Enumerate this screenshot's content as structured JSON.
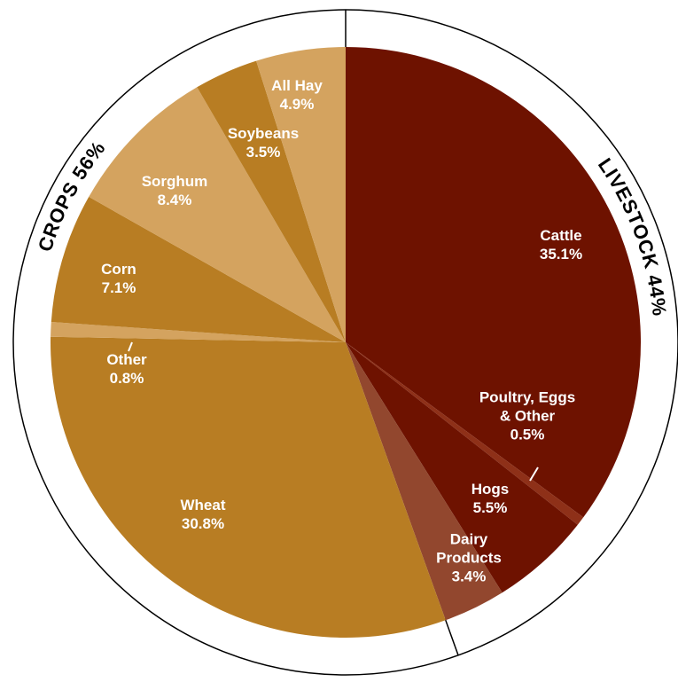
{
  "chart_data": {
    "type": "pie",
    "slices": [
      {
        "label": "Cattle",
        "value": 35.1,
        "value_label": "35.1%",
        "group": "livestock",
        "color": "#6e1200"
      },
      {
        "label": "Poultry, Eggs & Other",
        "label_lines": [
          "Poultry, Eggs",
          "& Other"
        ],
        "value": 0.5,
        "value_label": "0.5%",
        "group": "livestock",
        "color": "#8e3018"
      },
      {
        "label": "Hogs",
        "value": 5.5,
        "value_label": "5.5%",
        "group": "livestock",
        "color": "#6e1200"
      },
      {
        "label": "Dairy Products",
        "label_lines": [
          "Dairy",
          "Products"
        ],
        "value": 3.4,
        "value_label": "3.4%",
        "group": "livestock",
        "color": "#92472e"
      },
      {
        "label": "Wheat",
        "value": 30.8,
        "value_label": "30.8%",
        "group": "crops",
        "color": "#b87d23"
      },
      {
        "label": "Other",
        "value": 0.8,
        "value_label": "0.8%",
        "group": "crops",
        "color": "#d4a35f"
      },
      {
        "label": "Corn",
        "value": 7.1,
        "value_label": "7.1%",
        "group": "crops",
        "color": "#b87d23"
      },
      {
        "label": "Sorghum",
        "value": 8.4,
        "value_label": "8.4%",
        "group": "crops",
        "color": "#d4a35f"
      },
      {
        "label": "Soybeans",
        "value": 3.5,
        "value_label": "3.5%",
        "group": "crops",
        "color": "#b87d23"
      },
      {
        "label": "All Hay",
        "value": 4.9,
        "value_label": "4.9%",
        "group": "crops",
        "color": "#d4a35f"
      }
    ],
    "groups": [
      {
        "id": "livestock",
        "label": "LIVESTOCK 44%",
        "value": 44
      },
      {
        "id": "crops",
        "label": "CROPS 56%",
        "value": 56
      }
    ],
    "start": "12 o'clock",
    "direction": "clockwise",
    "legend": "none"
  }
}
